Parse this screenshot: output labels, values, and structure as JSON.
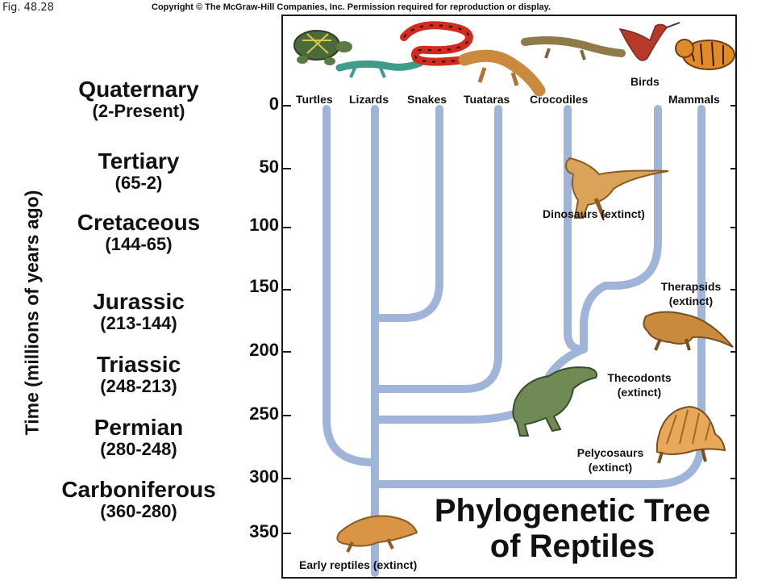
{
  "figure_label": "Fig. 48.28",
  "copyright": "Copyright © The McGraw-Hill Companies, Inc. Permission required for reproduction or display.",
  "axis": {
    "title": "Time (millions of years ago)",
    "ticks": [
      "0",
      "50",
      "100",
      "150",
      "200",
      "250",
      "300",
      "350"
    ]
  },
  "periods": [
    {
      "name": "Quaternary",
      "range": "(2-Present)"
    },
    {
      "name": "Tertiary",
      "range": "(65-2)"
    },
    {
      "name": "Cretaceous",
      "range": "(144-65)"
    },
    {
      "name": "Jurassic",
      "range": "(213-144)"
    },
    {
      "name": "Triassic",
      "range": "(248-213)"
    },
    {
      "name": "Permian",
      "range": "(280-248)"
    },
    {
      "name": "Carboniferous",
      "range": "(360-280)"
    }
  ],
  "groups": {
    "living": [
      "Turtles",
      "Lizards",
      "Snakes",
      "Tuataras",
      "Crocodiles",
      "Birds",
      "Mammals"
    ],
    "extinct": {
      "dinosaurs": "Dinosaurs (extinct)",
      "therapsids_1": "Therapsids",
      "therapsids_2": "(extinct)",
      "thecodonts_1": "Thecodonts",
      "thecodonts_2": "(extinct)",
      "pelycosaurs_1": "Pelycosaurs",
      "pelycosaurs_2": "(extinct)",
      "early_reptiles": "Early reptiles (extinct)"
    }
  },
  "title": {
    "line1": "Phylogenetic Tree",
    "line2": "of Reptiles"
  },
  "colors": {
    "branch": "#9fb4d8",
    "border": "#1a1a1a",
    "animal_brown": "#c98a3e",
    "animal_green": "#6f8a55",
    "snake_red": "#d42a1e",
    "turtle_green": "#4c6b3a",
    "lizard_teal": "#3f9c8a",
    "bird_red": "#b53a2a",
    "tiger_orange": "#e08a2a"
  }
}
